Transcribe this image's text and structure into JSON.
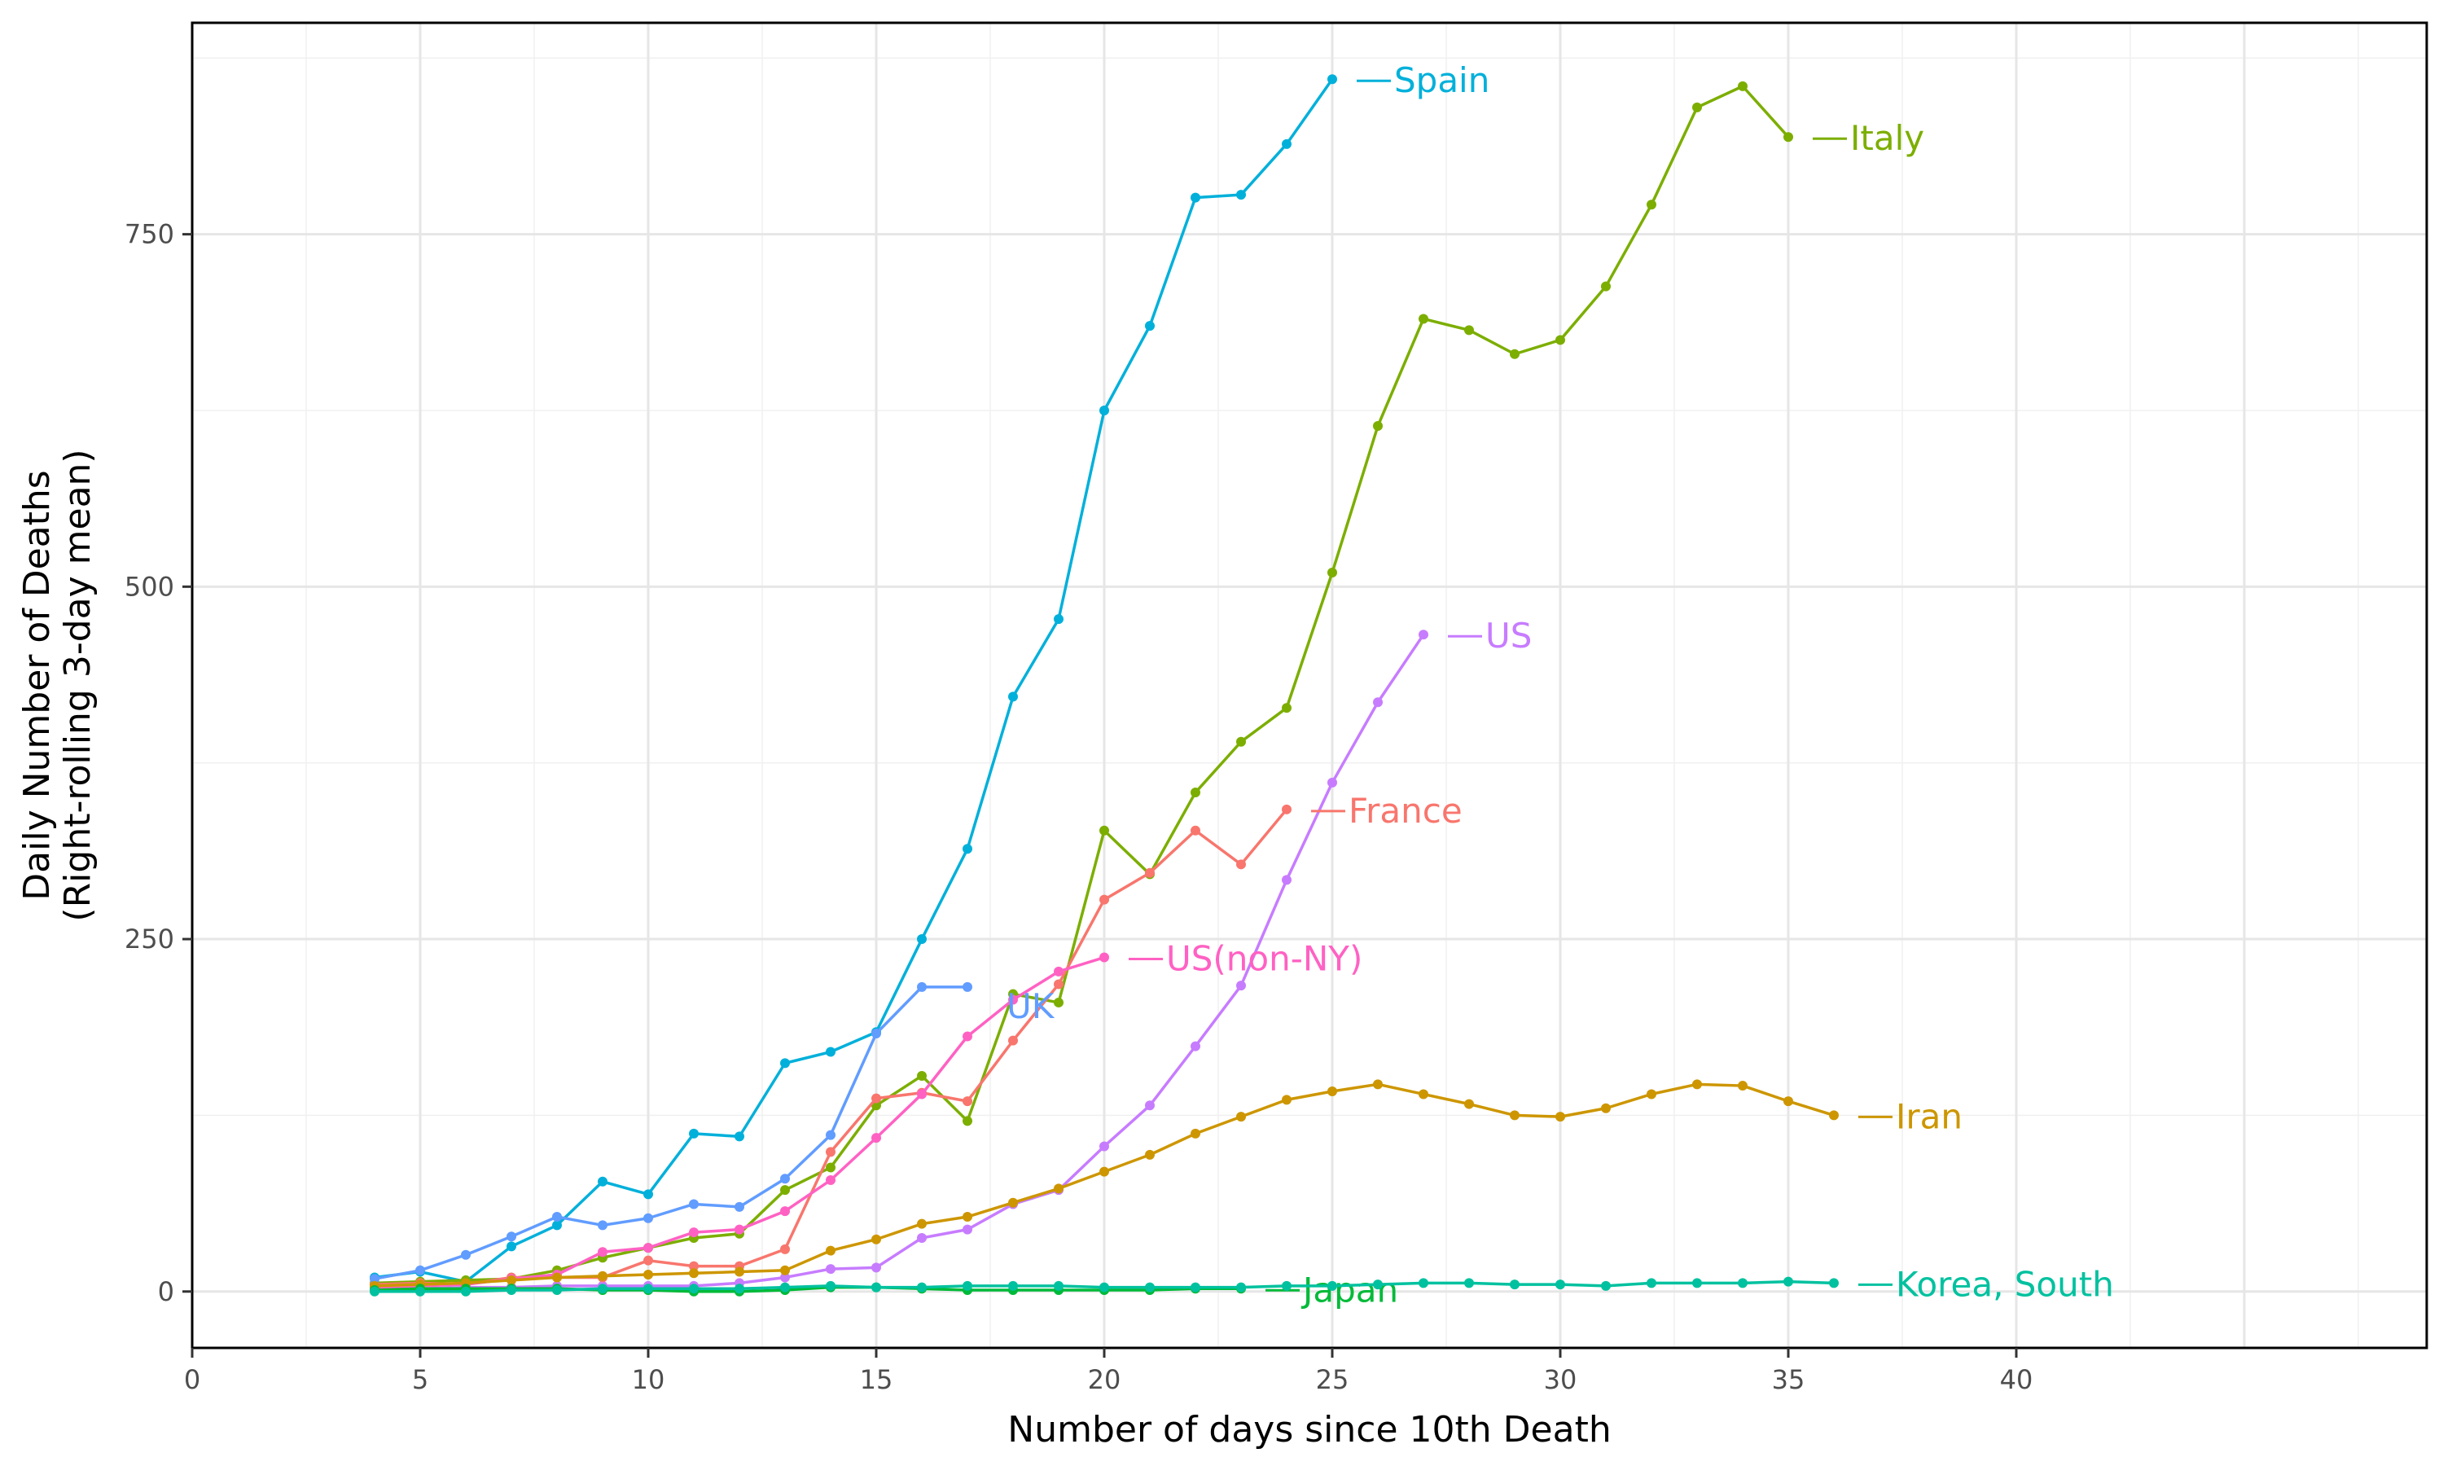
{
  "chart_data": {
    "type": "line",
    "title": "",
    "xlabel": "Number of days since 10th Death",
    "ylabel": [
      "Daily Number of Deaths",
      "(Right-rolling 3-day mean)"
    ],
    "xlim": [
      0,
      49
    ],
    "ylim": [
      -40,
      900
    ],
    "x_ticks": [
      0,
      5,
      10,
      15,
      20,
      25,
      30,
      35,
      40
    ],
    "y_ticks": [
      0,
      250,
      500,
      750
    ],
    "grid": true,
    "legend": "direct labels at line ends",
    "series": [
      {
        "name": "Spain",
        "color": "#00B0DA",
        "x0": 4,
        "values": [
          10,
          14,
          7,
          32,
          47,
          78,
          69,
          112,
          110,
          162,
          170,
          184,
          250,
          314,
          422,
          477,
          625,
          685,
          776,
          778,
          814,
          860
        ]
      },
      {
        "name": "Italy",
        "color": "#7CAE00",
        "x0": 4,
        "values": [
          6,
          7,
          8,
          9,
          15,
          24,
          31,
          38,
          41,
          72,
          88,
          132,
          153,
          121,
          211,
          205,
          327,
          296,
          354,
          390,
          414,
          510,
          614,
          690,
          682,
          665,
          675,
          713,
          771,
          840,
          855,
          819
        ]
      },
      {
        "name": "US",
        "color": "#C77CFF",
        "x0": 4,
        "values": [
          2,
          2,
          3,
          3,
          4,
          4,
          4,
          4,
          6,
          10,
          16,
          17,
          38,
          44,
          62,
          72,
          103,
          132,
          174,
          217,
          292,
          361,
          418,
          466
        ]
      },
      {
        "name": "France",
        "color": "#F8766D",
        "x0": 4,
        "values": [
          5,
          6,
          5,
          10,
          10,
          10,
          22,
          18,
          18,
          30,
          99,
          137,
          141,
          135,
          178,
          218,
          278,
          297,
          327,
          303,
          342
        ]
      },
      {
        "name": "US(non-NY)",
        "color": "#FF61C3",
        "x0": 4,
        "values": [
          3,
          4,
          5,
          9,
          12,
          28,
          31,
          42,
          44,
          57,
          79,
          109,
          140,
          181,
          207,
          227,
          237
        ]
      },
      {
        "name": "UK",
        "color": "#619CFF",
        "x0": 4,
        "values": [
          9,
          15,
          26,
          39,
          53,
          47,
          52,
          62,
          60,
          80,
          111,
          183,
          216,
          216
        ]
      },
      {
        "name": "Iran",
        "color": "#CD9600",
        "x0": 4,
        "values": [
          4,
          5,
          6,
          8,
          10,
          11,
          12,
          13,
          14,
          15,
          29,
          37,
          48,
          53,
          63,
          73,
          85,
          97,
          112,
          124,
          136,
          142,
          147,
          140,
          133,
          125,
          124,
          130,
          140,
          147,
          146,
          135,
          125
        ]
      },
      {
        "name": "Japan",
        "color": "#00BA38",
        "x0": 4,
        "values": [
          1,
          2,
          2,
          2,
          2,
          1,
          1,
          0,
          0,
          1,
          3,
          3,
          2,
          1,
          1,
          1,
          1,
          1,
          2,
          2
        ]
      },
      {
        "name": "Korea, South",
        "color": "#00C19F",
        "x0": 4,
        "values": [
          0,
          0,
          0,
          1,
          1,
          2,
          2,
          2,
          2,
          3,
          4,
          3,
          3,
          4,
          4,
          4,
          3,
          3,
          3,
          3,
          4,
          4,
          5,
          6,
          6,
          5,
          5,
          4,
          6,
          6,
          6,
          7,
          6
        ]
      }
    ]
  }
}
